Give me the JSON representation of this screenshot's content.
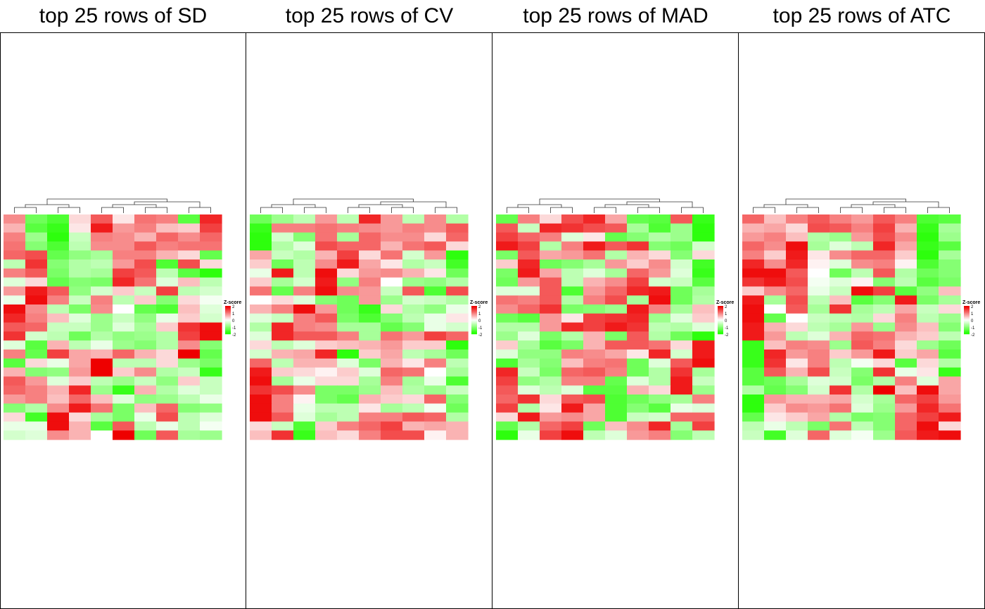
{
  "panels": [
    {
      "title": "top 25 rows of SD"
    },
    {
      "title": "top 25 rows of CV"
    },
    {
      "title": "top 25 rows of MAD"
    },
    {
      "title": "top 25 rows of ATC"
    }
  ],
  "legend": {
    "title": "Z-score",
    "ticks": [
      "2",
      "1",
      "0",
      "-1",
      "-2"
    ]
  },
  "colors": {
    "high": "#ee0000",
    "mid": "#ffffff",
    "low": "#22ff00",
    "dendrogram": "#333333"
  },
  "chart_data": [
    {
      "type": "heatmap",
      "title": "top 25 rows of SD",
      "rows": 25,
      "cols": 10,
      "color_scale": {
        "min": -2,
        "max": 2,
        "low": "#22ff00",
        "mid": "#ffffff",
        "high": "#ee0000"
      },
      "values": [
        [
          0.9,
          -1.3,
          -1.6,
          0.3,
          1.3,
          0.2,
          1.1,
          1.0,
          -1.5,
          1.7
        ],
        [
          0.6,
          -1.5,
          -1.8,
          0.2,
          1.8,
          0.8,
          1.0,
          0.5,
          0.4,
          1.5
        ],
        [
          1.0,
          -0.9,
          -1.9,
          -0.5,
          1.0,
          0.9,
          0.6,
          1.2,
          0.9,
          1.2
        ],
        [
          1.1,
          -1.1,
          -1.6,
          -0.6,
          0.9,
          0.9,
          1.3,
          1.0,
          1.1,
          1.1
        ],
        [
          1.2,
          1.4,
          -1.4,
          -1.0,
          -0.8,
          1.0,
          1.0,
          0.6,
          0.3,
          -1.4
        ],
        [
          -0.6,
          1.6,
          -1.1,
          -0.7,
          -0.6,
          0.8,
          1.4,
          -1.6,
          1.4,
          0.3
        ],
        [
          1.0,
          1.3,
          -1.2,
          -0.7,
          -0.8,
          1.5,
          1.3,
          -0.6,
          -1.5,
          -1.9
        ],
        [
          -0.3,
          0.3,
          -1.4,
          -1.1,
          -1.2,
          1.7,
          1.1,
          -0.3,
          0.5,
          -0.6
        ],
        [
          0.8,
          1.8,
          1.3,
          -1.0,
          -0.4,
          0.4,
          -0.5,
          1.5,
          -0.6,
          -0.4
        ],
        [
          -0.2,
          1.9,
          1.0,
          -0.5,
          1.0,
          -0.6,
          0.4,
          -1.1,
          0.3,
          -0.1
        ],
        [
          1.9,
          0.9,
          -0.6,
          -1.2,
          0.9,
          0.0,
          -1.4,
          -1.6,
          0.5,
          -0.3
        ],
        [
          1.7,
          1.0,
          0.5,
          -0.3,
          -0.9,
          -0.5,
          -1.0,
          -0.2,
          0.4,
          -0.4
        ],
        [
          1.3,
          1.2,
          -0.5,
          -0.5,
          -0.9,
          -0.3,
          -0.8,
          0.4,
          1.6,
          1.9
        ],
        [
          1.6,
          -0.4,
          -0.6,
          -1.3,
          -0.7,
          -1.0,
          -0.9,
          -0.7,
          1.5,
          1.9
        ],
        [
          -0.3,
          -1.5,
          0.6,
          -0.6,
          -0.2,
          -0.9,
          -1.1,
          -0.7,
          0.9,
          -1.1
        ],
        [
          1.0,
          -1.4,
          1.5,
          0.7,
          0.6,
          1.2,
          0.6,
          0.3,
          2.0,
          -1.4
        ],
        [
          -1.5,
          0.3,
          -0.2,
          0.7,
          2.0,
          -0.6,
          -0.6,
          0.3,
          -0.9,
          -1.2
        ],
        [
          0.6,
          -1.1,
          -1.0,
          0.8,
          2.0,
          0.4,
          0.9,
          -0.7,
          -0.5,
          -1.8
        ],
        [
          1.3,
          0.8,
          -0.3,
          0.4,
          -0.6,
          -0.9,
          -0.5,
          -1.0,
          0.4,
          -0.5
        ],
        [
          1.2,
          1.0,
          0.6,
          1.7,
          -0.9,
          -1.8,
          0.6,
          -0.7,
          -0.3,
          -0.5
        ],
        [
          0.8,
          1.0,
          0.5,
          1.2,
          0.5,
          -0.3,
          -1.0,
          -0.9,
          -0.6,
          -0.2
        ],
        [
          -1.1,
          -0.7,
          0.9,
          1.8,
          1.1,
          -1.2,
          0.5,
          1.2,
          -1.1,
          -1.0
        ],
        [
          0.3,
          -1.7,
          1.9,
          0.3,
          -0.8,
          -1.2,
          -0.2,
          1.4,
          -0.6,
          -0.3
        ],
        [
          -0.2,
          -0.2,
          1.9,
          0.6,
          -1.5,
          1.3,
          -0.6,
          -0.2,
          -0.6,
          -0.1
        ],
        [
          -0.4,
          -0.3,
          0.9,
          0.6,
          0.0,
          2.0,
          -1.3,
          1.3,
          -0.8,
          -0.9
        ]
      ]
    },
    {
      "type": "heatmap",
      "title": "top 25 rows of CV",
      "rows": 25,
      "cols": 10,
      "color_scale": {
        "min": -2,
        "max": 2,
        "low": "#22ff00",
        "mid": "#ffffff",
        "high": "#ee0000"
      },
      "values": [
        [
          -1.3,
          -0.9,
          -0.6,
          0.8,
          -0.6,
          1.7,
          0.8,
          -0.6,
          0.9,
          -0.7
        ],
        [
          -1.8,
          1.0,
          1.0,
          1.1,
          1.0,
          0.9,
          0.8,
          1.0,
          0.9,
          1.3
        ],
        [
          -1.9,
          -0.4,
          -1.1,
          1.1,
          -0.8,
          1.2,
          0.9,
          0.9,
          0.3,
          1.2
        ],
        [
          -1.9,
          -0.7,
          -0.3,
          1.4,
          1.2,
          1.2,
          0.6,
          1.1,
          1.3,
          0.3
        ],
        [
          0.7,
          -0.5,
          -0.7,
          0.6,
          1.5,
          0.3,
          1.1,
          -0.4,
          0.8,
          -1.9
        ],
        [
          0.4,
          -1.3,
          -0.6,
          0.9,
          1.8,
          0.7,
          0.2,
          -0.7,
          -0.5,
          -1.7
        ],
        [
          -0.2,
          1.8,
          -0.6,
          1.9,
          0.3,
          0.8,
          0.9,
          0.6,
          0.2,
          -1.3
        ],
        [
          0.4,
          -0.8,
          -0.4,
          1.8,
          -1.0,
          1.0,
          0.0,
          -0.9,
          -1.0,
          -0.7
        ],
        [
          1.1,
          -1.4,
          1.0,
          1.9,
          0.9,
          0.8,
          -0.5,
          1.3,
          -1.6,
          1.4
        ],
        [
          0.0,
          0.3,
          -0.3,
          -1.1,
          -1.3,
          0.8,
          -0.9,
          -0.4,
          -0.5,
          -0.7
        ],
        [
          0.6,
          1.0,
          1.9,
          0.8,
          -1.3,
          -1.8,
          0.3,
          -0.7,
          -1.0,
          -0.2
        ],
        [
          -0.3,
          -0.5,
          1.0,
          1.3,
          -1.2,
          -1.6,
          -1.1,
          -0.6,
          -0.2,
          0.2
        ],
        [
          -0.7,
          1.7,
          1.0,
          0.9,
          -0.8,
          -0.8,
          -1.4,
          -1.1,
          -0.2,
          -0.4
        ],
        [
          -0.3,
          1.7,
          1.3,
          1.3,
          1.0,
          -0.8,
          1.1,
          0.8,
          1.5,
          1.2
        ],
        [
          0.3,
          -0.6,
          -0.3,
          0.4,
          0.5,
          0.6,
          0.8,
          0.4,
          0.4,
          -1.9
        ],
        [
          -0.4,
          0.6,
          0.7,
          1.7,
          -1.9,
          0.4,
          0.7,
          -0.6,
          -0.8,
          -1.3
        ],
        [
          1.2,
          -0.6,
          0.6,
          0.6,
          -0.3,
          -1.2,
          0.6,
          0.2,
          1.0,
          -0.6
        ],
        [
          1.8,
          0.4,
          0.3,
          0.1,
          0.4,
          -0.3,
          1.2,
          1.1,
          0.0,
          -0.8
        ],
        [
          1.9,
          -0.8,
          -0.2,
          0.3,
          0.3,
          -0.8,
          1.0,
          -0.8,
          -0.2,
          -1.6
        ],
        [
          1.6,
          1.4,
          0.9,
          -1.2,
          -1.2,
          -0.9,
          0.5,
          -0.7,
          -0.9,
          -0.5
        ],
        [
          1.9,
          1.0,
          0.1,
          -1.2,
          -1.4,
          0.6,
          0.4,
          0.3,
          1.2,
          -1.1
        ],
        [
          1.9,
          1.0,
          -0.2,
          -0.6,
          -0.6,
          0.2,
          -0.8,
          -0.6,
          -0.1,
          -1.3
        ],
        [
          1.9,
          1.3,
          -0.3,
          -0.8,
          -0.6,
          1.0,
          1.0,
          1.3,
          1.2,
          -0.7
        ],
        [
          0.3,
          -0.5,
          -1.6,
          0.4,
          1.0,
          1.2,
          1.5,
          0.6,
          0.7,
          0.6
        ],
        [
          0.5,
          1.6,
          -1.8,
          0.5,
          0.3,
          1.0,
          1.4,
          1.4,
          0.1,
          0.6
        ]
      ]
    },
    {
      "type": "heatmap",
      "title": "top 25 rows of MAD",
      "rows": 25,
      "cols": 10,
      "color_scale": {
        "min": -2,
        "max": 2,
        "low": "#22ff00",
        "mid": "#ffffff",
        "high": "#ee0000"
      },
      "values": [
        [
          -1.4,
          1.0,
          0.3,
          1.4,
          1.7,
          0.7,
          -1.4,
          -1.5,
          1.3,
          -1.8
        ],
        [
          1.3,
          -0.5,
          1.7,
          1.6,
          1.4,
          1.3,
          -0.8,
          -1.6,
          -0.9,
          -1.9
        ],
        [
          1.5,
          1.2,
          1.0,
          -0.3,
          0.2,
          -1.4,
          -1.1,
          -0.7,
          -0.9,
          -1.9
        ],
        [
          1.8,
          1.5,
          -0.7,
          1.0,
          1.8,
          1.3,
          1.6,
          -1.1,
          -1.3,
          -0.4
        ],
        [
          -1.2,
          1.3,
          0.7,
          0.8,
          1.1,
          -0.7,
          0.6,
          0.3,
          -1.1,
          0.3
        ],
        [
          0.4,
          1.7,
          -1.3,
          -1.1,
          -0.8,
          0.8,
          0.4,
          0.9,
          -0.4,
          -1.7
        ],
        [
          -1.2,
          1.8,
          0.7,
          -0.6,
          -0.3,
          -0.8,
          1.2,
          0.8,
          -0.3,
          -1.8
        ],
        [
          -1.3,
          0.8,
          1.3,
          -0.6,
          0.6,
          0.9,
          1.5,
          -0.4,
          -0.5,
          -1.5
        ],
        [
          -0.3,
          -0.3,
          1.3,
          -1.6,
          0.8,
          1.2,
          1.7,
          1.8,
          -1.3,
          -0.8
        ],
        [
          1.1,
          1.0,
          1.3,
          -0.7,
          1.0,
          1.4,
          -0.8,
          1.9,
          -1.3,
          -0.7
        ],
        [
          0.9,
          1.2,
          1.6,
          -1.2,
          -1.1,
          -0.9,
          1.8,
          1.0,
          -0.8,
          0.5
        ],
        [
          -1.3,
          -1.5,
          0.8,
          0.2,
          1.5,
          1.6,
          1.7,
          -0.9,
          -0.3,
          0.4
        ],
        [
          -0.7,
          -0.7,
          0.8,
          1.7,
          1.5,
          1.8,
          1.6,
          -0.6,
          -0.7,
          -0.3
        ],
        [
          -0.9,
          -0.3,
          -1.2,
          -0.7,
          0.6,
          -1.2,
          1.3,
          -0.7,
          -1.3,
          -1.9
        ],
        [
          0.4,
          -0.8,
          -1.5,
          -1.2,
          0.6,
          1.3,
          1.3,
          1.1,
          0.3,
          1.8
        ],
        [
          -0.3,
          -1.0,
          -1.0,
          1.0,
          0.9,
          0.7,
          0.2,
          1.7,
          -0.4,
          1.8
        ],
        [
          -1.6,
          -0.8,
          -1.1,
          0.5,
          1.0,
          1.1,
          -1.3,
          -0.3,
          1.3,
          1.9
        ],
        [
          1.7,
          -0.5,
          -1.2,
          1.2,
          1.3,
          1.0,
          -1.3,
          -0.7,
          1.6,
          -0.8
        ],
        [
          1.5,
          -1.0,
          -0.7,
          1.0,
          1.0,
          -1.4,
          -0.3,
          -0.7,
          1.8,
          -0.5
        ],
        [
          1.3,
          -0.3,
          -0.6,
          -0.3,
          -1.5,
          -1.5,
          0.6,
          0.3,
          1.8,
          -0.9
        ],
        [
          1.2,
          1.6,
          0.3,
          1.3,
          1.4,
          -1.6,
          -1.3,
          -1.0,
          -0.8,
          1.0
        ],
        [
          1.5,
          -0.7,
          0.2,
          1.8,
          0.7,
          -1.6,
          -1.1,
          -1.5,
          -0.2,
          -0.3
        ],
        [
          0.3,
          1.8,
          0.8,
          0.9,
          0.7,
          -1.6,
          -0.5,
          -0.4,
          1.2,
          1.2
        ],
        [
          -1.4,
          -0.7,
          1.2,
          1.5,
          -1.3,
          0.5,
          0.9,
          1.7,
          -0.8,
          1.5
        ],
        [
          -1.9,
          -0.2,
          1.5,
          1.9,
          -0.6,
          -0.3,
          0.8,
          1.0,
          -1.1,
          -0.6
        ]
      ]
    },
    {
      "type": "heatmap",
      "title": "top 25 rows of ATC",
      "rows": 25,
      "cols": 10,
      "color_scale": {
        "min": -2,
        "max": 2,
        "low": "#22ff00",
        "mid": "#ffffff",
        "high": "#ee0000"
      },
      "values": [
        [
          1.2,
          0.5,
          1.0,
          1.3,
          1.0,
          0.8,
          1.3,
          1.0,
          -1.6,
          -1.5
        ],
        [
          0.6,
          0.7,
          0.3,
          1.4,
          1.3,
          1.0,
          1.5,
          0.6,
          -1.8,
          -0.8
        ],
        [
          0.8,
          1.0,
          0.5,
          -0.7,
          -0.9,
          0.8,
          1.4,
          0.9,
          -1.9,
          -0.9
        ],
        [
          1.2,
          0.9,
          1.9,
          -0.8,
          -0.3,
          -0.6,
          1.7,
          0.7,
          -1.8,
          -1.5
        ],
        [
          1.0,
          0.4,
          1.8,
          0.2,
          0.9,
          1.2,
          1.2,
          0.4,
          -1.9,
          -0.8
        ],
        [
          1.7,
          0.9,
          1.7,
          0.1,
          -0.3,
          0.9,
          1.0,
          0.1,
          -1.6,
          -1.1
        ],
        [
          1.9,
          1.9,
          1.3,
          0.0,
          -1.3,
          -0.6,
          1.3,
          -0.7,
          -1.3,
          -1.1
        ],
        [
          1.6,
          1.8,
          1.4,
          -0.1,
          -0.3,
          0.1,
          -1.1,
          -0.6,
          -1.5,
          -1.2
        ],
        [
          0.4,
          0.9,
          1.2,
          -0.2,
          -0.5,
          1.9,
          1.5,
          -1.5,
          -1.0,
          0.5
        ],
        [
          1.8,
          -0.8,
          1.4,
          -0.6,
          0.5,
          -1.5,
          -1.1,
          1.8,
          -1.2,
          -0.8
        ],
        [
          1.9,
          0.0,
          1.3,
          -0.8,
          1.6,
          -0.8,
          -0.6,
          0.7,
          -0.5,
          0.3
        ],
        [
          1.9,
          -1.4,
          0.0,
          -0.5,
          -0.6,
          -0.7,
          0.3,
          1.0,
          -0.6,
          -0.9
        ],
        [
          1.8,
          0.6,
          0.3,
          -0.6,
          -0.8,
          0.8,
          -0.9,
          0.9,
          0.5,
          -1.1
        ],
        [
          1.8,
          0.8,
          -0.6,
          -0.3,
          0.6,
          1.2,
          1.1,
          0.6,
          0.4,
          -0.6
        ],
        [
          -1.8,
          0.5,
          1.0,
          0.9,
          -0.9,
          1.3,
          1.0,
          0.3,
          -0.9,
          -1.3
        ],
        [
          -1.8,
          1.7,
          0.8,
          1.0,
          0.4,
          0.8,
          1.8,
          0.4,
          0.7,
          -1.5
        ],
        [
          -1.8,
          1.6,
          0.2,
          1.0,
          -0.6,
          -0.1,
          0.3,
          -1.5,
          0.3,
          -0.7
        ],
        [
          -1.5,
          1.3,
          0.6,
          1.4,
          -0.5,
          -1.1,
          1.6,
          -0.2,
          0.2,
          -1.8
        ],
        [
          -1.5,
          -1.3,
          -0.8,
          -0.3,
          -0.4,
          -1.2,
          -0.7,
          1.0,
          -0.3,
          0.7
        ],
        [
          -0.7,
          -1.4,
          -1.1,
          -0.4,
          1.6,
          -0.7,
          2.0,
          0.5,
          1.9,
          0.7
        ],
        [
          -1.9,
          0.8,
          0.6,
          0.6,
          0.7,
          -0.4,
          -0.8,
          1.2,
          1.5,
          0.8
        ],
        [
          -1.9,
          0.4,
          0.9,
          0.8,
          1.1,
          -0.3,
          -0.9,
          0.8,
          1.7,
          1.1
        ],
        [
          -1.4,
          0.2,
          0.4,
          0.7,
          -0.7,
          -1.2,
          -1.1,
          1.2,
          1.5,
          1.8
        ],
        [
          -0.6,
          -0.2,
          -0.6,
          -1.2,
          1.1,
          -0.6,
          -1.1,
          1.2,
          1.9,
          0.3
        ],
        [
          -0.5,
          -1.7,
          -0.3,
          1.2,
          -0.3,
          -0.1,
          -0.9,
          1.3,
          1.8,
          1.9
        ]
      ]
    }
  ]
}
